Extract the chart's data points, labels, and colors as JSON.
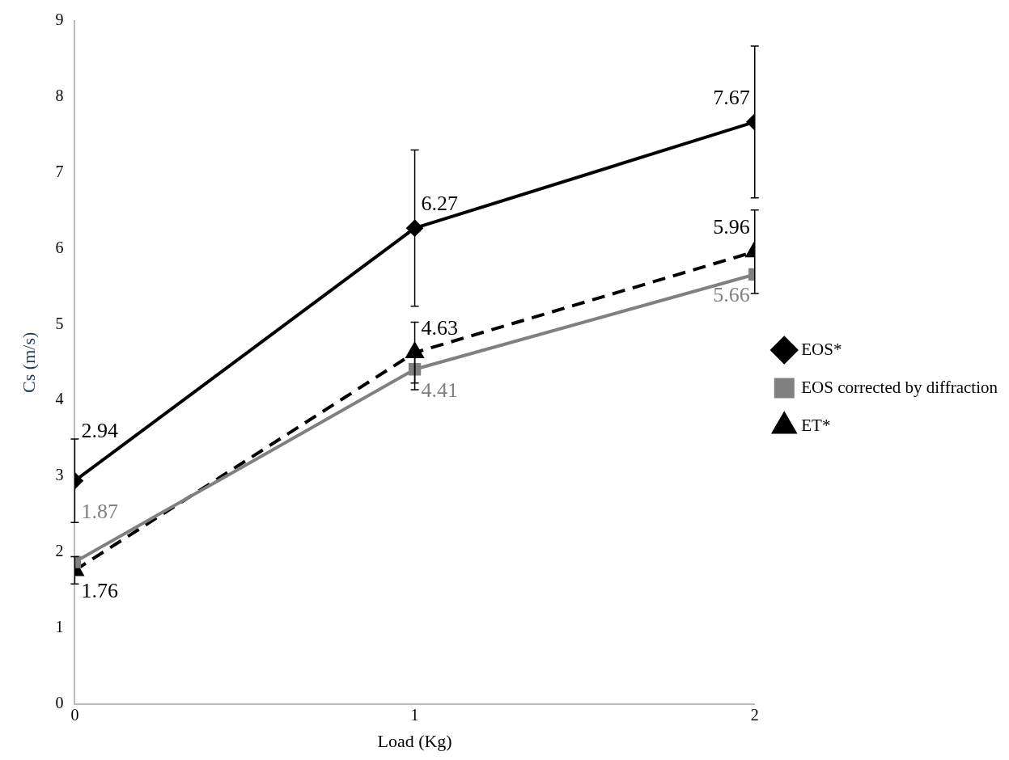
{
  "chart_data": {
    "type": "line",
    "xlabel": "Load (Kg)",
    "ylabel": "Cs (m/s)",
    "x": [
      0,
      1,
      2
    ],
    "xlim": [
      0,
      2
    ],
    "xticks": [
      0,
      1,
      2
    ],
    "ylim": [
      0,
      9
    ],
    "yticks": [
      0,
      1,
      2,
      3,
      4,
      5,
      6,
      7,
      8,
      9
    ],
    "series": [
      {
        "name": "EOS*",
        "color": "#000000",
        "values": [
          2.94,
          6.27,
          7.67
        ],
        "errors": [
          0.55,
          1.03,
          1.0
        ],
        "marker": "diamond",
        "line_style": "solid"
      },
      {
        "name": "EOS corrected by diffraction",
        "color": "#808080",
        "values": [
          1.87,
          4.41,
          5.66
        ],
        "errors": [
          null,
          0.27,
          null
        ],
        "marker": "square",
        "line_style": "solid"
      },
      {
        "name": "ET*",
        "color": "#000000",
        "values": [
          1.76,
          4.63,
          5.96
        ],
        "errors": [
          0.18,
          0.4,
          0.55
        ],
        "marker": "triangle",
        "line_style": "dashed"
      }
    ],
    "data_labels": true,
    "legend": "right",
    "grid": false
  }
}
